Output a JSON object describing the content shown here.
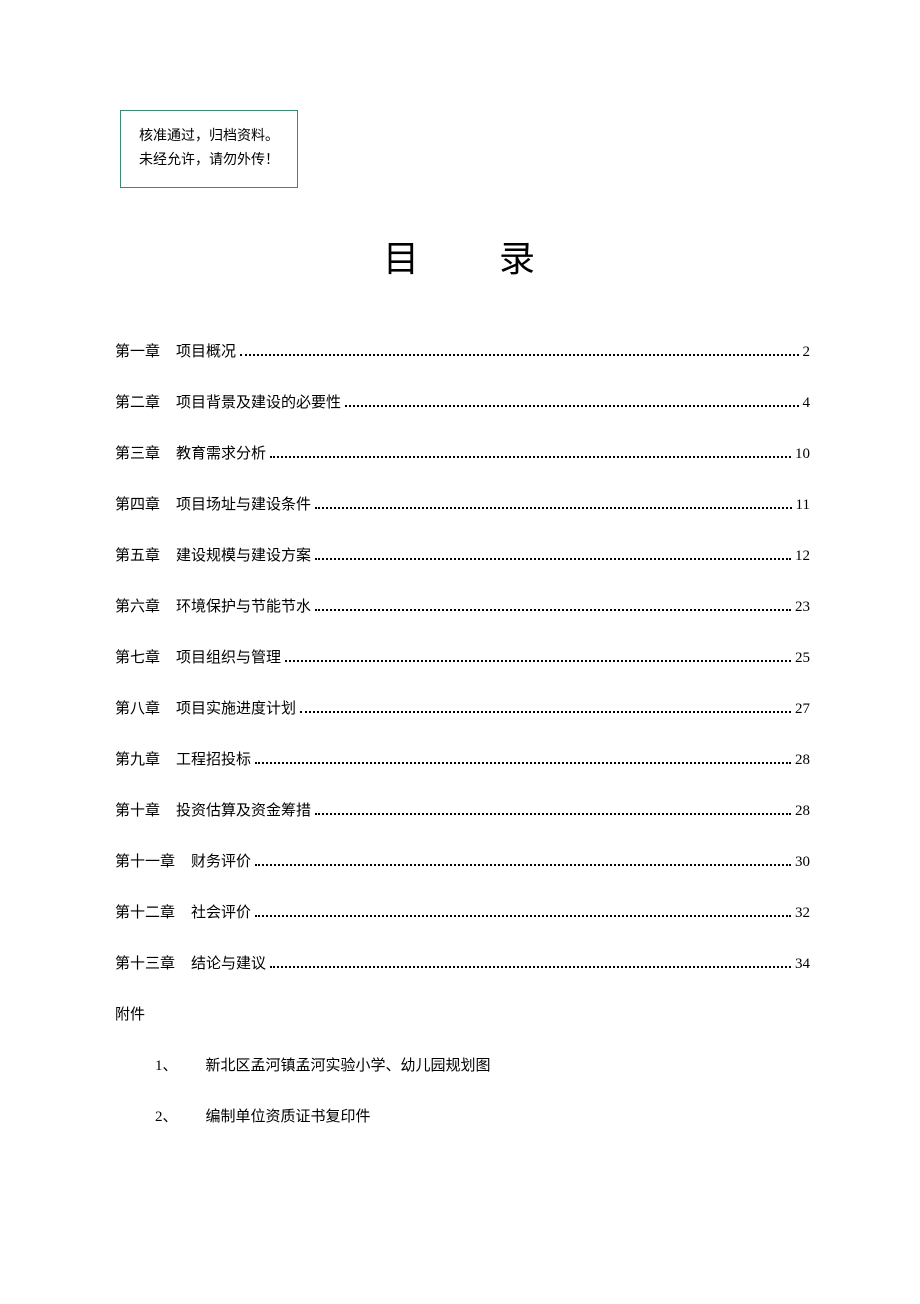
{
  "notice": {
    "line1": "核准通过，归档资料。",
    "line2": "未经允许，请勿外传！"
  },
  "title": {
    "char1": "目",
    "char2": "录"
  },
  "toc": [
    {
      "chapter": "第一章",
      "title": "项目概况",
      "page": "2"
    },
    {
      "chapter": "第二章",
      "title": "项目背景及建设的必要性",
      "page": "4"
    },
    {
      "chapter": "第三章",
      "title": "教育需求分析",
      "page": "10"
    },
    {
      "chapter": "第四章",
      "title": "项目场址与建设条件",
      "page": "11"
    },
    {
      "chapter": "第五章",
      "title": "建设规模与建设方案",
      "page": "12"
    },
    {
      "chapter": "第六章",
      "title": "环境保护与节能节水",
      "page": "23"
    },
    {
      "chapter": "第七章",
      "title": "项目组织与管理",
      "page": "25"
    },
    {
      "chapter": "第八章",
      "title": "项目实施进度计划",
      "page": "27"
    },
    {
      "chapter": "第九章",
      "title": "工程招投标",
      "page": "28"
    },
    {
      "chapter": "第十章",
      "title": "投资估算及资金筹措",
      "page": "28"
    },
    {
      "chapter": "第十一章",
      "title": "财务评价",
      "page": "30"
    },
    {
      "chapter": "第十二章",
      "title": "社会评价",
      "page": "32"
    },
    {
      "chapter": "第十三章",
      "title": "结论与建议",
      "page": "34"
    }
  ],
  "appendix": {
    "heading": "附件",
    "items": [
      {
        "num": "1、",
        "text": "新北区孟河镇孟河实验小学、幼儿园规划图"
      },
      {
        "num": "2、",
        "text": "编制单位资质证书复印件"
      }
    ]
  }
}
